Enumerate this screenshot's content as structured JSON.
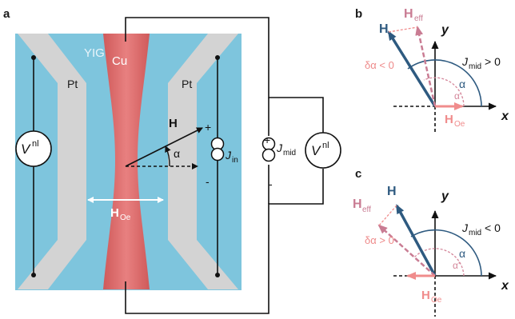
{
  "panels": {
    "a": {
      "letter": "a",
      "substrate": "YIG",
      "left_strip": "Pt",
      "right_strip": "Pt",
      "center_strip": "Cu",
      "field_vector": "H",
      "angle": "α",
      "field_oe": "H",
      "field_oe_sub": "Oe",
      "volt_left": "V",
      "volt_left_sup": "nl",
      "current_in": "J",
      "current_in_sub": "in",
      "current_mid": "J",
      "current_mid_sub": "mid",
      "volt_right": "V",
      "volt_right_sup": "nl",
      "plus": "+",
      "minus": "-"
    },
    "b": {
      "letter": "b",
      "h": "H",
      "heff": "H",
      "heff_sub": "eff",
      "y": "y",
      "x": "x",
      "jmid": "J",
      "jmid_sub": "mid",
      "jmid_cond": "> 0",
      "delta": "δα < 0",
      "alpha": "α",
      "alpha_p": "α'",
      "hoe": "H",
      "hoe_sub": "Oe"
    },
    "c": {
      "letter": "c",
      "h": "H",
      "heff": "H",
      "heff_sub": "eff",
      "y": "y",
      "x": "x",
      "jmid": "J",
      "jmid_sub": "mid",
      "jmid_cond": "< 0",
      "delta": "δα > 0",
      "alpha": "α",
      "alpha_p": "α'",
      "hoe": "H",
      "hoe_sub": "Oe"
    }
  },
  "colors": {
    "yig": "#7ec5dd",
    "pt": "#d3d3d3",
    "cu": "#d86a6a",
    "h_vector": "#2e5a80",
    "heff_vector": "#c97c93",
    "hoe_vector": "#f08c8c",
    "angle_text": "#2e5a80",
    "angle_prime": "#d4869a",
    "delta_text": "#ee8a8a"
  }
}
